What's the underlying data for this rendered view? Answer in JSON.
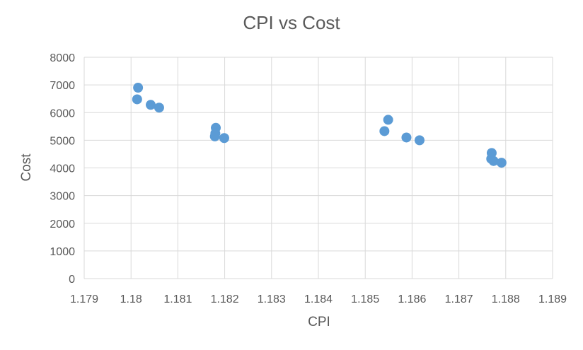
{
  "chart_data": {
    "type": "scatter",
    "title": "CPI vs Cost",
    "xlabel": "CPI",
    "ylabel": "Cost",
    "xlim": [
      1.179,
      1.189
    ],
    "ylim": [
      0,
      8000
    ],
    "xticks": [
      "1.179",
      "1.18",
      "1.181",
      "1.182",
      "1.183",
      "1.184",
      "1.185",
      "1.186",
      "1.187",
      "1.188",
      "1.189"
    ],
    "yticks": [
      "0",
      "1000",
      "2000",
      "3000",
      "4000",
      "5000",
      "6000",
      "7000",
      "8000"
    ],
    "grid": true,
    "series": [
      {
        "color": "#5b9bd5",
        "points": [
          {
            "x": 1.18015,
            "y": 6900
          },
          {
            "x": 1.18013,
            "y": 6480
          },
          {
            "x": 1.18042,
            "y": 6280
          },
          {
            "x": 1.1806,
            "y": 6180
          },
          {
            "x": 1.18181,
            "y": 5450
          },
          {
            "x": 1.1818,
            "y": 5250
          },
          {
            "x": 1.18179,
            "y": 5140
          },
          {
            "x": 1.18199,
            "y": 5080
          },
          {
            "x": 1.18549,
            "y": 5740
          },
          {
            "x": 1.18541,
            "y": 5330
          },
          {
            "x": 1.18588,
            "y": 5100
          },
          {
            "x": 1.18616,
            "y": 5000
          },
          {
            "x": 1.1877,
            "y": 4540
          },
          {
            "x": 1.18769,
            "y": 4330
          },
          {
            "x": 1.18774,
            "y": 4250
          },
          {
            "x": 1.18791,
            "y": 4190
          }
        ]
      }
    ]
  }
}
